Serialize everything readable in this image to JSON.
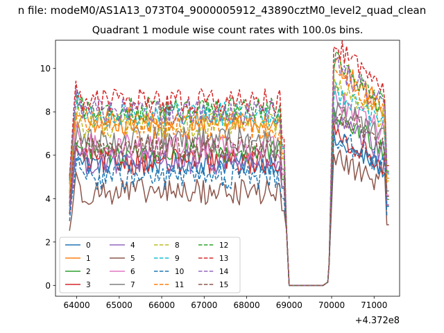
{
  "suptitle": "n file: modeM0/AS1A13_073T04_9000005912_43890cztM0_level2_quad_clean",
  "title": "Quadrant 1 module wise count rates with 100.0s bins.",
  "offset_text": "+4.372e8",
  "chart_data": {
    "type": "line",
    "title": "Quadrant 1 module wise count rates with 100.0s bins.",
    "xlabel": "",
    "ylabel": "",
    "x_offset": 437200000,
    "xlim": [
      63500,
      71600
    ],
    "ylim": [
      -0.5,
      11.3
    ],
    "xticks": [
      64000,
      65000,
      66000,
      67000,
      68000,
      69000,
      70000,
      71000
    ],
    "xtick_labels": [
      "64000",
      "65000",
      "66000",
      "67000",
      "68000",
      "69000",
      "70000",
      "71000"
    ],
    "yticks": [
      0,
      2,
      4,
      6,
      8,
      10
    ],
    "ytick_labels": [
      "0",
      "2",
      "4",
      "6",
      "8",
      "10"
    ],
    "grid": false,
    "legend_position": "lower-left",
    "bin_width_s": 100,
    "segments": [
      {
        "start": 63830,
        "end": 68900
      },
      {
        "start": 69000,
        "end": 69950
      },
      {
        "start": 70050,
        "end": 71350
      }
    ],
    "series": [
      {
        "name": "0",
        "color": "#1f77b4",
        "style": "solid",
        "level1": 5.6,
        "level3": 5.8,
        "noise": 0.25
      },
      {
        "name": "1",
        "color": "#ff7f0e",
        "style": "solid",
        "level1": 7.6,
        "level3": 8.9,
        "noise": 0.3
      },
      {
        "name": "2",
        "color": "#2ca02c",
        "style": "solid",
        "level1": 6.1,
        "level3": 6.9,
        "noise": 0.3
      },
      {
        "name": "3",
        "color": "#d62728",
        "style": "solid",
        "level1": 5.7,
        "level3": 6.1,
        "noise": 0.3
      },
      {
        "name": "4",
        "color": "#9467bd",
        "style": "solid",
        "level1": 5.7,
        "level3": 6.6,
        "noise": 0.3
      },
      {
        "name": "5",
        "color": "#8c564b",
        "style": "solid",
        "level1": 4.3,
        "level3": 5.1,
        "noise": 0.3
      },
      {
        "name": "6",
        "color": "#e377c2",
        "style": "solid",
        "level1": 6.4,
        "level3": 7.6,
        "noise": 0.3
      },
      {
        "name": "7",
        "color": "#7f7f7f",
        "style": "solid",
        "level1": 6.7,
        "level3": 7.3,
        "noise": 0.3
      },
      {
        "name": "8",
        "color": "#bcbd22",
        "style": "dashed",
        "level1": 7.4,
        "level3": 8.2,
        "noise": 0.3
      },
      {
        "name": "9",
        "color": "#17becf",
        "style": "dashed",
        "level1": 7.9,
        "level3": 7.9,
        "noise": 0.3
      },
      {
        "name": "10",
        "color": "#1f77b4",
        "style": "dashed",
        "level1": 5.0,
        "level3": 6.0,
        "noise": 0.3
      },
      {
        "name": "11",
        "color": "#ff7f0e",
        "style": "dashed",
        "level1": 7.3,
        "level3": 8.6,
        "noise": 0.3
      },
      {
        "name": "12",
        "color": "#2ca02c",
        "style": "dashed",
        "level1": 8.1,
        "level3": 9.0,
        "noise": 0.3
      },
      {
        "name": "13",
        "color": "#d62728",
        "style": "dashed",
        "level1": 8.5,
        "level3": 9.7,
        "noise": 0.3
      },
      {
        "name": "14",
        "color": "#9467bd",
        "style": "dashed",
        "level1": 8.0,
        "level3": 8.9,
        "noise": 0.3
      },
      {
        "name": "15",
        "color": "#8c564b",
        "style": "dashed",
        "level1": 6.3,
        "level3": 7.0,
        "noise": 0.3
      }
    ]
  }
}
